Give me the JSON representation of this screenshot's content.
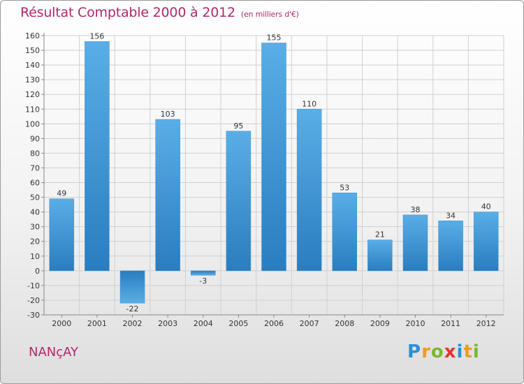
{
  "header": {
    "title": "Résultat Comptable 2000 à 2012",
    "subtitle": "(en milliers d'€)"
  },
  "footer": {
    "city": "NANçAY",
    "brand": "Proxiti",
    "brand_letters": [
      {
        "ch": "P",
        "color": "#2b8fd6"
      },
      {
        "ch": "r",
        "color": "#f29a1f"
      },
      {
        "ch": "o",
        "color": "#7bb82e"
      },
      {
        "ch": "x",
        "color": "#e5352b"
      },
      {
        "ch": "i",
        "color": "#2b8fd6"
      },
      {
        "ch": "t",
        "color": "#f29a1f"
      },
      {
        "ch": "i",
        "color": "#7bb82e"
      }
    ]
  },
  "colors": {
    "title": "#b0286b",
    "bar_top": "#5aaee6",
    "bar_bottom": "#2a7dbf",
    "grid": "#d0d0d0",
    "axis_text": "#333333"
  },
  "chart_data": {
    "type": "bar",
    "title": "Résultat Comptable 2000 à 2012",
    "subtitle": "(en milliers d'€)",
    "xlabel": "",
    "ylabel": "",
    "categories": [
      "2000",
      "2001",
      "2002",
      "2003",
      "2004",
      "2005",
      "2006",
      "2007",
      "2008",
      "2009",
      "2010",
      "2011",
      "2012"
    ],
    "values": [
      49,
      156,
      -22,
      103,
      -3,
      95,
      155,
      110,
      53,
      21,
      38,
      34,
      40
    ],
    "ylim": [
      -30,
      160
    ],
    "yticks": [
      -30,
      -20,
      -10,
      0,
      10,
      20,
      30,
      40,
      50,
      60,
      70,
      80,
      90,
      100,
      110,
      120,
      130,
      140,
      150,
      160
    ],
    "grid": true,
    "legend": "none"
  }
}
